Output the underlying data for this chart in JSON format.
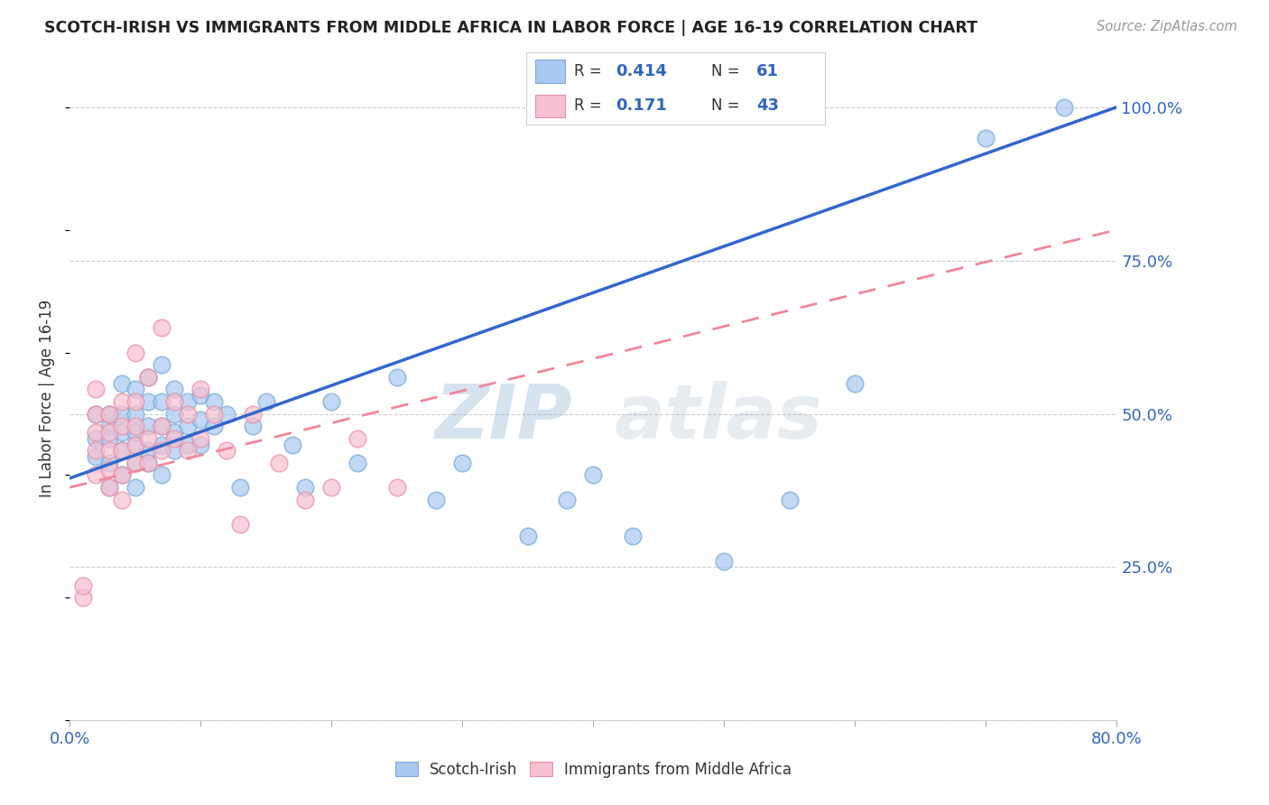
{
  "title": "SCOTCH-IRISH VS IMMIGRANTS FROM MIDDLE AFRICA IN LABOR FORCE | AGE 16-19 CORRELATION CHART",
  "source_text": "Source: ZipAtlas.com",
  "ylabel": "In Labor Force | Age 16-19",
  "xlim": [
    0.0,
    0.8
  ],
  "ylim": [
    0.0,
    1.05
  ],
  "xticks": [
    0.0,
    0.1,
    0.2,
    0.3,
    0.4,
    0.5,
    0.6,
    0.7,
    0.8
  ],
  "ytick_positions": [
    0.0,
    0.25,
    0.5,
    0.75,
    1.0
  ],
  "ytick_labels": [
    "",
    "25.0%",
    "50.0%",
    "75.0%",
    "100.0%"
  ],
  "blue_color": "#A8C8F0",
  "blue_edge": "#7AAAD8",
  "pink_color": "#F8C0D0",
  "pink_edge": "#E890A8",
  "trend_blue": "#3366CC",
  "trend_pink": "#EE8899",
  "R_blue": 0.414,
  "N_blue": 61,
  "R_pink": 0.171,
  "N_pink": 43,
  "watermark_zip": "ZIP",
  "watermark_atlas": "atlas",
  "blue_trend_x": [
    0.0,
    0.8
  ],
  "blue_trend_y": [
    0.395,
    1.0
  ],
  "pink_trend_x": [
    0.0,
    0.8
  ],
  "pink_trend_y": [
    0.38,
    0.8
  ],
  "blue_scatter_x": [
    0.02,
    0.02,
    0.02,
    0.03,
    0.03,
    0.03,
    0.03,
    0.03,
    0.04,
    0.04,
    0.04,
    0.04,
    0.04,
    0.05,
    0.05,
    0.05,
    0.05,
    0.05,
    0.05,
    0.06,
    0.06,
    0.06,
    0.06,
    0.06,
    0.07,
    0.07,
    0.07,
    0.07,
    0.07,
    0.08,
    0.08,
    0.08,
    0.08,
    0.09,
    0.09,
    0.09,
    0.1,
    0.1,
    0.1,
    0.11,
    0.11,
    0.12,
    0.13,
    0.14,
    0.15,
    0.17,
    0.18,
    0.2,
    0.22,
    0.25,
    0.28,
    0.3,
    0.35,
    0.38,
    0.4,
    0.43,
    0.5,
    0.55,
    0.6,
    0.7,
    0.76
  ],
  "blue_scatter_y": [
    0.43,
    0.46,
    0.5,
    0.38,
    0.42,
    0.46,
    0.48,
    0.5,
    0.4,
    0.44,
    0.47,
    0.5,
    0.55,
    0.38,
    0.42,
    0.45,
    0.47,
    0.5,
    0.54,
    0.42,
    0.44,
    0.48,
    0.52,
    0.56,
    0.4,
    0.45,
    0.48,
    0.52,
    0.58,
    0.44,
    0.47,
    0.5,
    0.54,
    0.45,
    0.48,
    0.52,
    0.45,
    0.49,
    0.53,
    0.48,
    0.52,
    0.5,
    0.38,
    0.48,
    0.52,
    0.45,
    0.38,
    0.52,
    0.42,
    0.56,
    0.36,
    0.42,
    0.3,
    0.36,
    0.4,
    0.3,
    0.26,
    0.36,
    0.55,
    0.95,
    1.0
  ],
  "pink_scatter_x": [
    0.01,
    0.01,
    0.02,
    0.02,
    0.02,
    0.02,
    0.02,
    0.03,
    0.03,
    0.03,
    0.03,
    0.03,
    0.04,
    0.04,
    0.04,
    0.04,
    0.04,
    0.05,
    0.05,
    0.05,
    0.05,
    0.05,
    0.06,
    0.06,
    0.06,
    0.07,
    0.07,
    0.07,
    0.08,
    0.08,
    0.09,
    0.09,
    0.1,
    0.1,
    0.11,
    0.12,
    0.13,
    0.14,
    0.16,
    0.18,
    0.2,
    0.22,
    0.25
  ],
  "pink_scatter_y": [
    0.2,
    0.22,
    0.4,
    0.44,
    0.47,
    0.5,
    0.54,
    0.38,
    0.41,
    0.44,
    0.47,
    0.5,
    0.36,
    0.4,
    0.44,
    0.48,
    0.52,
    0.42,
    0.45,
    0.48,
    0.52,
    0.6,
    0.42,
    0.46,
    0.56,
    0.44,
    0.48,
    0.64,
    0.46,
    0.52,
    0.44,
    0.5,
    0.46,
    0.54,
    0.5,
    0.44,
    0.32,
    0.5,
    0.42,
    0.36,
    0.38,
    0.46,
    0.38
  ]
}
